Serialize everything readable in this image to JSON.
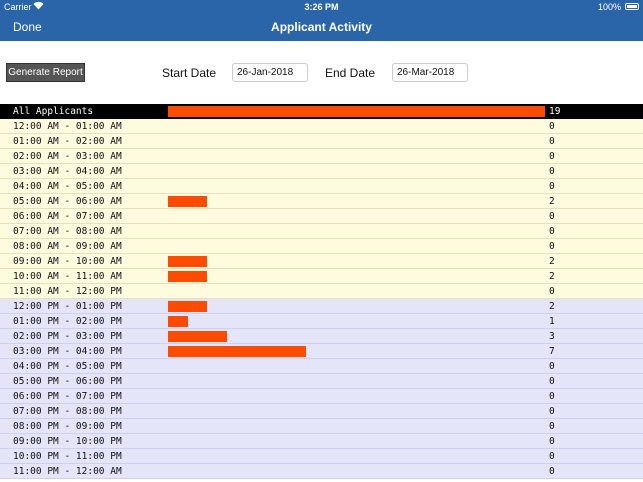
{
  "status": {
    "carrier": "Carrier",
    "time": "3:26 PM",
    "battery": "100%"
  },
  "nav": {
    "done": "Done",
    "title": "Applicant Activity"
  },
  "controls": {
    "generate_label": "Generate Report",
    "start_label": "Start Date",
    "start_value": "26-Jan-2018",
    "end_label": "End Date",
    "end_value": "26-Mar-2018"
  },
  "colors": {
    "bar": "#fd4c01",
    "am_bg": "#fefbdf",
    "pm_bg": "#e5e5fa",
    "header": "#2b65a9"
  },
  "total": {
    "label": "All Applicants",
    "count": 19
  },
  "hours": [
    {
      "label": "12:00 AM - 01:00 AM",
      "count": 0,
      "period": "am"
    },
    {
      "label": "01:00 AM - 02:00 AM",
      "count": 0,
      "period": "am"
    },
    {
      "label": "02:00 AM - 03:00 AM",
      "count": 0,
      "period": "am"
    },
    {
      "label": "03:00 AM - 04:00 AM",
      "count": 0,
      "period": "am"
    },
    {
      "label": "04:00 AM - 05:00 AM",
      "count": 0,
      "period": "am"
    },
    {
      "label": "05:00 AM - 06:00 AM",
      "count": 2,
      "period": "am"
    },
    {
      "label": "06:00 AM - 07:00 AM",
      "count": 0,
      "period": "am"
    },
    {
      "label": "07:00 AM - 08:00 AM",
      "count": 0,
      "period": "am"
    },
    {
      "label": "08:00 AM - 09:00 AM",
      "count": 0,
      "period": "am"
    },
    {
      "label": "09:00 AM - 10:00 AM",
      "count": 2,
      "period": "am"
    },
    {
      "label": "10:00 AM - 11:00 AM",
      "count": 2,
      "period": "am"
    },
    {
      "label": "11:00 AM - 12:00 PM",
      "count": 0,
      "period": "am"
    },
    {
      "label": "12:00 PM - 01:00 PM",
      "count": 2,
      "period": "pm"
    },
    {
      "label": "01:00 PM - 02:00 PM",
      "count": 1,
      "period": "pm"
    },
    {
      "label": "02:00 PM - 03:00 PM",
      "count": 3,
      "period": "pm"
    },
    {
      "label": "03:00 PM - 04:00 PM",
      "count": 7,
      "period": "pm"
    },
    {
      "label": "04:00 PM - 05:00 PM",
      "count": 0,
      "period": "pm"
    },
    {
      "label": "05:00 PM - 06:00 PM",
      "count": 0,
      "period": "pm"
    },
    {
      "label": "06:00 PM - 07:00 PM",
      "count": 0,
      "period": "pm"
    },
    {
      "label": "07:00 PM - 08:00 PM",
      "count": 0,
      "period": "pm"
    },
    {
      "label": "08:00 PM - 09:00 PM",
      "count": 0,
      "period": "pm"
    },
    {
      "label": "09:00 PM - 10:00 PM",
      "count": 0,
      "period": "pm"
    },
    {
      "label": "10:00 PM - 11:00 PM",
      "count": 0,
      "period": "pm"
    },
    {
      "label": "11:00 PM - 12:00 AM",
      "count": 0,
      "period": "pm"
    }
  ]
}
